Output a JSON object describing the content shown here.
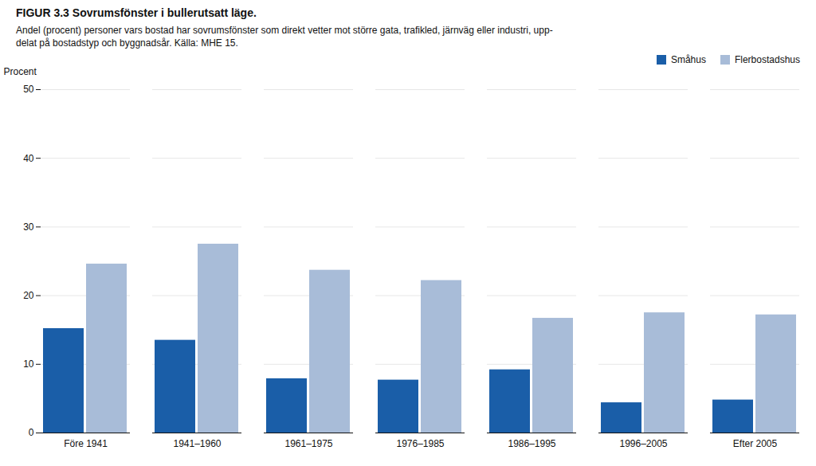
{
  "chart_data": {
    "type": "bar",
    "title": "FIGUR 3.3 Sovrumsfönster i bullerutsatt läge.",
    "subtitle": [
      "Andel (procent) personer vars bostad har sovrumsfönster som direkt vetter mot större gata, trafikled, järnväg eller industri, upp-",
      "delat på bostadstyp och byggnadsår. Källa: MHE 15."
    ],
    "ylabel": "Procent",
    "categories": [
      "Före 1941",
      "1941–1960",
      "1961–1975",
      "1976–1985",
      "1986–1995",
      "1996–2005",
      "Efter 2005"
    ],
    "series": [
      {
        "name": "Småhus",
        "color": "#1a5ea8",
        "values": [
          15.2,
          13.5,
          7.9,
          7.7,
          9.2,
          4.4,
          4.8
        ]
      },
      {
        "name": "Flerbostadshus",
        "color": "#a8bcd8",
        "values": [
          24.6,
          27.5,
          23.7,
          22.2,
          16.7,
          17.5,
          17.2
        ]
      }
    ],
    "ylim": [
      0,
      50
    ],
    "yticks": [
      0,
      10,
      20,
      30,
      40,
      50
    ],
    "grid": true,
    "legend": "top-right"
  }
}
